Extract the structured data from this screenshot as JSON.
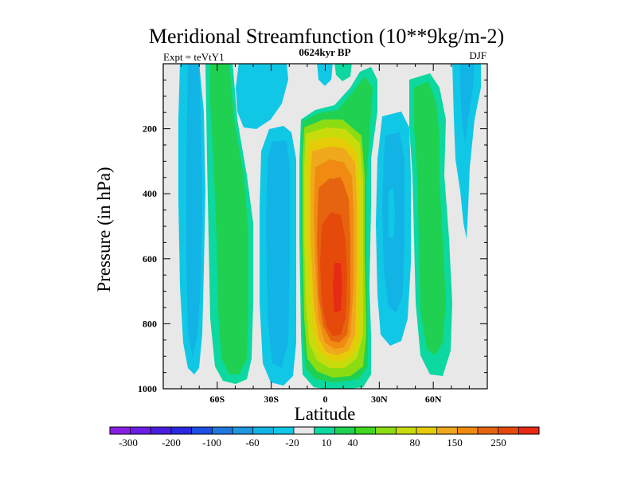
{
  "chart_data": {
    "type": "heatmap",
    "title": "Meridional Streamfunction (10**9kg/m-2)",
    "left_label": "Expt = teVtY1",
    "center_label": "0624kyr BP",
    "right_label": "DJF",
    "xlabel": "Latitude",
    "ylabel": "Pressure (in hPa)",
    "xlim": [
      -90,
      90
    ],
    "ylim": [
      0,
      1000
    ],
    "y_reversed": true,
    "x_ticks": [
      {
        "value": -60,
        "label": "60S"
      },
      {
        "value": -30,
        "label": "30S"
      },
      {
        "value": 0,
        "label": "0"
      },
      {
        "value": 30,
        "label": "30N"
      },
      {
        "value": 60,
        "label": "60N"
      }
    ],
    "y_ticks": [
      {
        "value": 200,
        "label": "200"
      },
      {
        "value": 400,
        "label": "400"
      },
      {
        "value": 600,
        "label": "600"
      },
      {
        "value": 800,
        "label": "800"
      },
      {
        "value": 1000,
        "label": "1000"
      }
    ],
    "colorbar": {
      "colors": [
        "#8a1ee6",
        "#6a1ee6",
        "#4a1ee0",
        "#2a28e0",
        "#1e50e6",
        "#1e78e0",
        "#1e96e0",
        "#12b4e6",
        "#10c8e6",
        "#e8e8e8",
        "#0cd8a0",
        "#20d050",
        "#40d820",
        "#8cdc14",
        "#c8dc0c",
        "#e6cc08",
        "#f0a81c",
        "#f08a10",
        "#e66410",
        "#e64a0a",
        "#e62a14"
      ],
      "labels": [
        "-300",
        "-200",
        "-100",
        "-60",
        "-20",
        "10",
        "40",
        "80",
        "150",
        "250"
      ]
    },
    "field_background": "#e8e8e8",
    "features": [
      {
        "name": "sh-polar-negative",
        "lat_range": [
          -80,
          -65
        ],
        "p_range": [
          0,
          970
        ],
        "value": -20
      },
      {
        "name": "sh-midlat-positive",
        "lat_range": [
          -64,
          -43
        ],
        "p_range": [
          0,
          985
        ],
        "value": 40
      },
      {
        "name": "sh-ferrel-negative",
        "lat_range": [
          -42,
          -20
        ],
        "p_range": [
          120,
          985
        ],
        "value": -60
      },
      {
        "name": "hadley-positive-core",
        "lat_range": [
          -12,
          22
        ],
        "p_range": [
          80,
          990
        ],
        "value": 250
      },
      {
        "name": "nh-ferrel-negative",
        "lat_range": [
          22,
          45
        ],
        "p_range": [
          120,
          930
        ],
        "value": -60
      },
      {
        "name": "nh-midlat-positive",
        "lat_range": [
          38,
          60
        ],
        "p_range": [
          60,
          960
        ],
        "value": 40
      },
      {
        "name": "nh-polar-negative",
        "lat_range": [
          66,
          80
        ],
        "p_range": [
          0,
          320
        ],
        "value": -20
      }
    ]
  }
}
